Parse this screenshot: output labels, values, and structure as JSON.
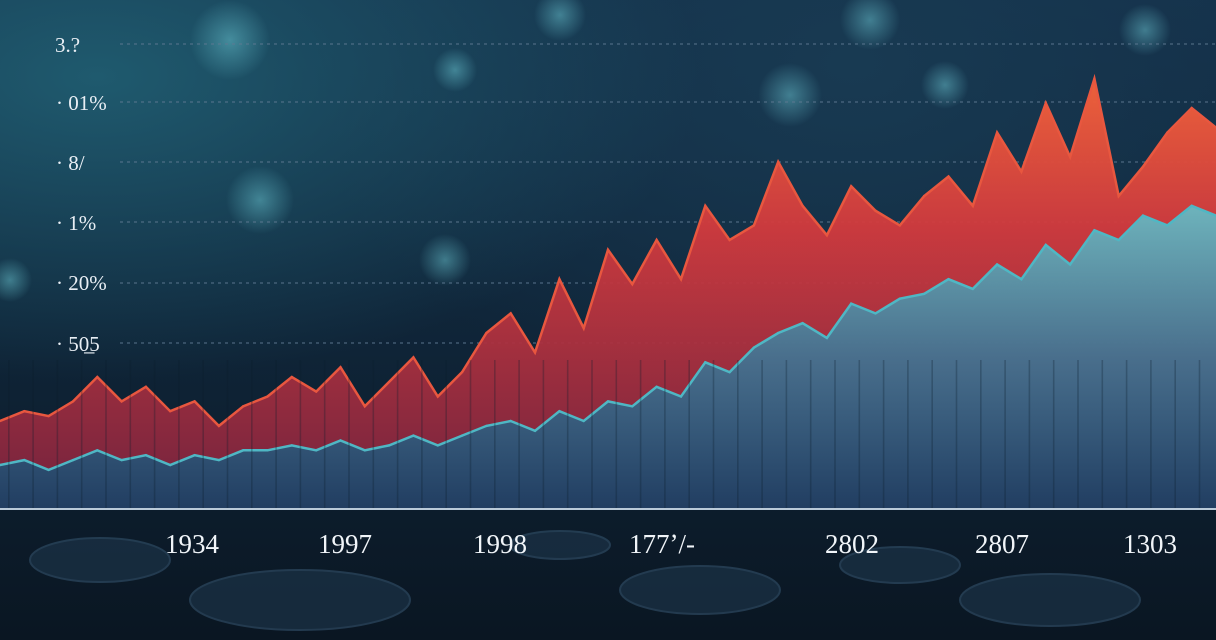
{
  "chart_data": {
    "type": "area",
    "title": "",
    "xlabel": "",
    "ylabel": "",
    "y_tick_labels": [
      "3.?",
      "· 01%",
      "· 8/",
      "· 1%",
      "· 20%",
      "· 50̲5"
    ],
    "x_tick_labels": [
      "1934",
      "1997",
      "1998",
      "177ʼ/-",
      "2802",
      "2807",
      "1303"
    ],
    "grid": true,
    "ylim": [
      0,
      100
    ],
    "x": [
      0,
      2,
      4,
      6,
      8,
      10,
      12,
      14,
      16,
      18,
      20,
      22,
      24,
      26,
      28,
      30,
      32,
      34,
      36,
      38,
      40,
      42,
      44,
      46,
      48,
      50,
      52,
      54,
      56,
      58,
      60,
      62,
      64,
      66,
      68,
      70,
      72,
      74,
      76,
      78,
      80,
      82,
      84,
      86,
      88,
      90,
      92,
      94,
      96,
      98,
      100
    ],
    "series": [
      {
        "name": "",
        "color": "#e8573f",
        "values": [
          18,
          20,
          19,
          22,
          27,
          22,
          25,
          20,
          22,
          17,
          21,
          23,
          27,
          24,
          29,
          21,
          26,
          31,
          23,
          28,
          36,
          40,
          32,
          47,
          37,
          53,
          46,
          55,
          47,
          62,
          55,
          58,
          71,
          62,
          56,
          66,
          61,
          58,
          64,
          68,
          62,
          77,
          69,
          83,
          72,
          88,
          64,
          70,
          77,
          82,
          78
        ]
      },
      {
        "name": "",
        "color": "#4fb7c4",
        "values": [
          9,
          10,
          8,
          10,
          12,
          10,
          11,
          9,
          11,
          10,
          12,
          12,
          13,
          12,
          14,
          12,
          13,
          15,
          13,
          15,
          17,
          18,
          16,
          20,
          18,
          22,
          21,
          25,
          23,
          30,
          28,
          33,
          36,
          38,
          35,
          42,
          40,
          43,
          44,
          47,
          45,
          50,
          47,
          54,
          50,
          57,
          55,
          60,
          58,
          62,
          60
        ]
      }
    ]
  }
}
